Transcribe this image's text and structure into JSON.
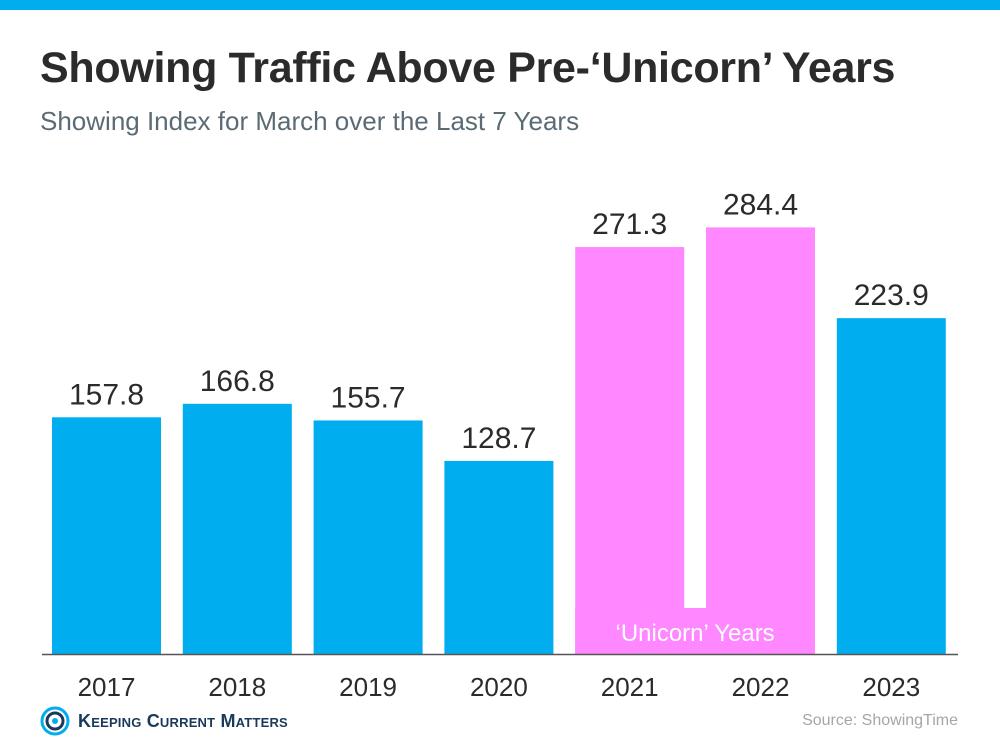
{
  "header": {
    "title": "Showing Traffic Above Pre-‘Unicorn’ Years",
    "subtitle": "Showing Index for March over the Last 7 Years"
  },
  "colors": {
    "accent_bar": "#00aeef",
    "bar_default": "#00aeef",
    "bar_unicorn": "#ff87ff",
    "text_dark": "#2b2b2b",
    "axis_line": "#555555",
    "brand_navy": "#1a3a5c"
  },
  "chart_data": {
    "type": "bar",
    "categories": [
      "2017",
      "2018",
      "2019",
      "2020",
      "2021",
      "2022",
      "2023"
    ],
    "values": [
      157.8,
      166.8,
      155.7,
      128.7,
      271.3,
      284.4,
      223.9
    ],
    "value_labels": [
      "157.8",
      "166.8",
      "155.7",
      "128.7",
      "271.3",
      "284.4",
      "223.9"
    ],
    "highlighted_categories": [
      "2021",
      "2022"
    ],
    "highlight_label": "‘Unicorn’ Years",
    "ylim": [
      0,
      305
    ],
    "grid": false,
    "legend": "none",
    "xlabel": "",
    "ylabel": ""
  },
  "footer": {
    "brand": "Keeping Current Matters",
    "logo_icon": "kcm-circle-logo-icon",
    "source": "Source: ShowingTime"
  }
}
